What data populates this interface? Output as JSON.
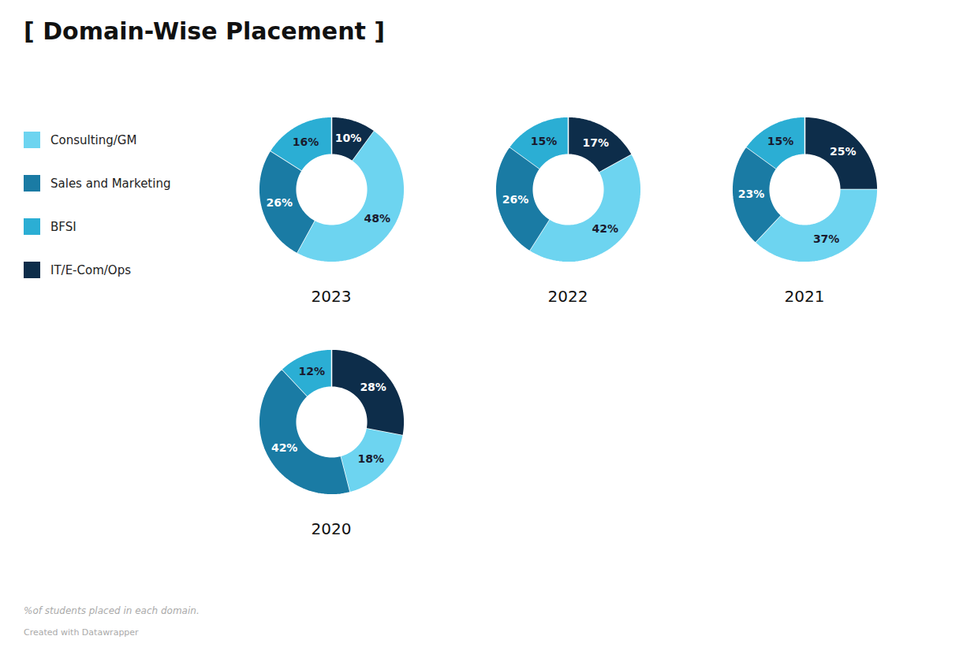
{
  "title": "[ Domain-Wise Placement ]",
  "subtitle": "%of students placed in each domain.",
  "caption": "Created with Datawrapper",
  "series": [
    {
      "name": "Consulting/GM",
      "color": "#6DD4F0"
    },
    {
      "name": "Sales and Marketing",
      "color": "#1A7BA4"
    },
    {
      "name": "BFSI",
      "color": "#2BAED4"
    },
    {
      "name": "IT/E-Com/Ops",
      "color": "#0D2D4A"
    }
  ],
  "chart_data": [
    {
      "type": "pie",
      "title": "2023",
      "categories": [
        "IT/E-Com/Ops",
        "Consulting/GM",
        "Sales and Marketing",
        "BFSI"
      ],
      "values": [
        10,
        48,
        26,
        16
      ],
      "value_labels": [
        "10%",
        "48%",
        "26%",
        "16%"
      ],
      "colors": [
        "#0D2D4A",
        "#6DD4F0",
        "#1A7BA4",
        "#2BAED4"
      ],
      "data_labels": true
    },
    {
      "type": "pie",
      "title": "2022",
      "categories": [
        "IT/E-Com/Ops",
        "Consulting/GM",
        "Sales and Marketing",
        "BFSI"
      ],
      "values": [
        17,
        42,
        26,
        15
      ],
      "value_labels": [
        "17%",
        "42%",
        "26%",
        "15%"
      ],
      "colors": [
        "#0D2D4A",
        "#6DD4F0",
        "#1A7BA4",
        "#2BAED4"
      ],
      "data_labels": true
    },
    {
      "type": "pie",
      "title": "2021",
      "categories": [
        "IT/E-Com/Ops",
        "Consulting/GM",
        "Sales and Marketing",
        "BFSI"
      ],
      "values": [
        25,
        37,
        23,
        15
      ],
      "value_labels": [
        "25%",
        "37%",
        "23%",
        "15%"
      ],
      "colors": [
        "#0D2D4A",
        "#6DD4F0",
        "#1A7BA4",
        "#2BAED4"
      ],
      "data_labels": true
    },
    {
      "type": "pie",
      "title": "2020",
      "categories": [
        "IT/E-Com/Ops",
        "Consulting/GM",
        "Sales and Marketing",
        "BFSI"
      ],
      "values": [
        28,
        18,
        42,
        12
      ],
      "value_labels": [
        "28%",
        "18%",
        "42%",
        "12%"
      ],
      "colors": [
        "#0D2D4A",
        "#6DD4F0",
        "#1A7BA4",
        "#2BAED4"
      ],
      "data_labels": true
    }
  ]
}
